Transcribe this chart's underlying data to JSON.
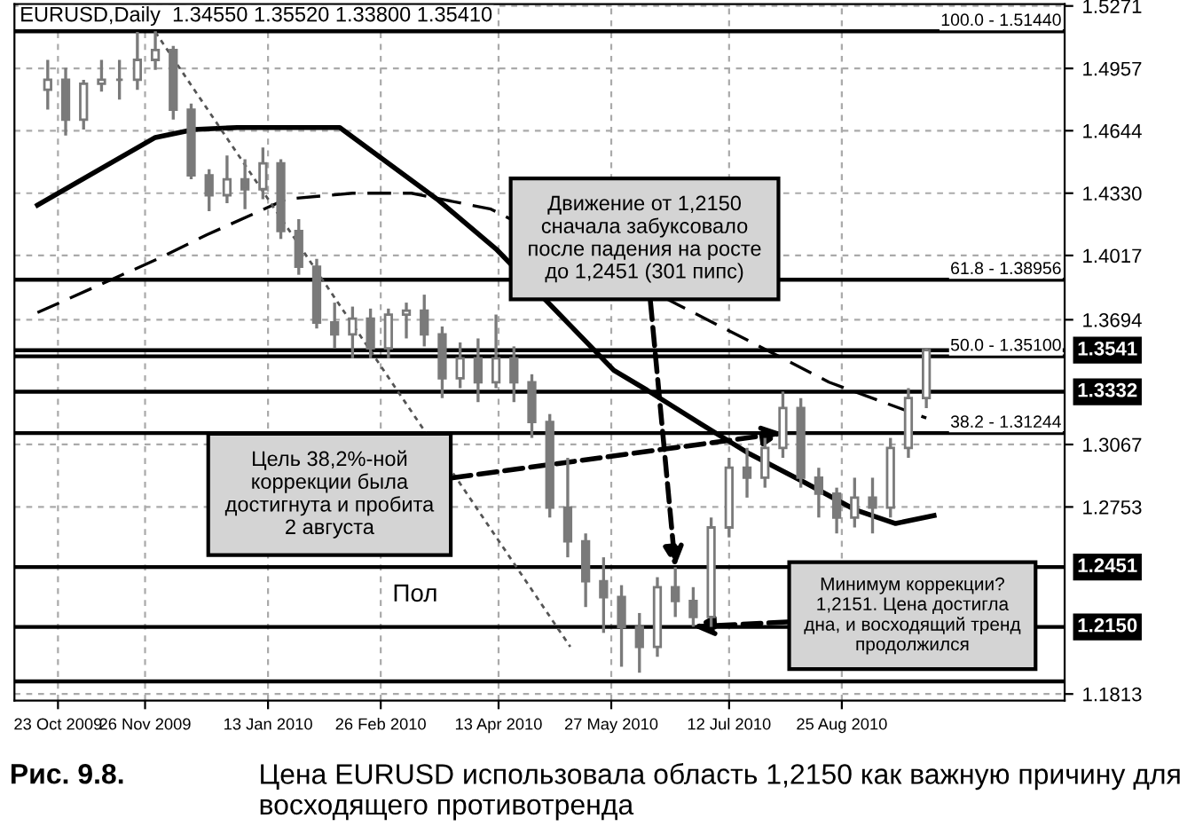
{
  "chart_data": {
    "type": "candlestick",
    "title": "EURUSD,Daily  1.34550 1.35520 1.33800 1.35410",
    "x": [
      "2009-10-19",
      "2009-10-26",
      "2009-11-02",
      "2009-11-09",
      "2009-11-16",
      "2009-11-23",
      "2009-11-30",
      "2009-12-07",
      "2009-12-14",
      "2009-12-21",
      "2009-12-28",
      "2010-01-04",
      "2010-01-11",
      "2010-01-18",
      "2010-01-25",
      "2010-02-01",
      "2010-02-08",
      "2010-02-15",
      "2010-02-22",
      "2010-03-01",
      "2010-03-08",
      "2010-03-15",
      "2010-03-22",
      "2010-03-29",
      "2010-04-05",
      "2010-04-12",
      "2010-04-19",
      "2010-04-26",
      "2010-05-03",
      "2010-05-10",
      "2010-05-17",
      "2010-05-24",
      "2010-05-31",
      "2010-06-07",
      "2010-06-14",
      "2010-06-21",
      "2010-06-28",
      "2010-07-05",
      "2010-07-12",
      "2010-07-19",
      "2010-07-26",
      "2010-08-02",
      "2010-08-09",
      "2010-08-16",
      "2010-08-23",
      "2010-08-30",
      "2010-09-06",
      "2010-09-13",
      "2010-09-20",
      "2010-09-27"
    ],
    "ohlc": [
      [
        1.485,
        1.5,
        1.475,
        1.49
      ],
      [
        1.49,
        1.496,
        1.462,
        1.47
      ],
      [
        1.47,
        1.49,
        1.465,
        1.488
      ],
      [
        1.488,
        1.5,
        1.484,
        1.49
      ],
      [
        1.49,
        1.5,
        1.48,
        1.49
      ],
      [
        1.49,
        1.514,
        1.485,
        1.5
      ],
      [
        1.5,
        1.5144,
        1.495,
        1.505
      ],
      [
        1.505,
        1.507,
        1.47,
        1.475
      ],
      [
        1.475,
        1.478,
        1.44,
        1.442
      ],
      [
        1.442,
        1.445,
        1.424,
        1.432
      ],
      [
        1.432,
        1.452,
        1.428,
        1.44
      ],
      [
        1.44,
        1.45,
        1.425,
        1.435
      ],
      [
        1.435,
        1.456,
        1.43,
        1.448
      ],
      [
        1.448,
        1.45,
        1.41,
        1.414
      ],
      [
        1.414,
        1.42,
        1.392,
        1.396
      ],
      [
        1.396,
        1.4,
        1.365,
        1.368
      ],
      [
        1.368,
        1.378,
        1.355,
        1.362
      ],
      [
        1.362,
        1.376,
        1.35,
        1.37
      ],
      [
        1.37,
        1.375,
        1.35,
        1.355
      ],
      [
        1.355,
        1.375,
        1.35,
        1.372
      ],
      [
        1.372,
        1.378,
        1.36,
        1.374
      ],
      [
        1.374,
        1.382,
        1.356,
        1.362
      ],
      [
        1.362,
        1.366,
        1.33,
        1.34
      ],
      [
        1.34,
        1.358,
        1.335,
        1.35
      ],
      [
        1.35,
        1.36,
        1.328,
        1.338
      ],
      [
        1.338,
        1.372,
        1.335,
        1.35
      ],
      [
        1.35,
        1.356,
        1.328,
        1.338
      ],
      [
        1.338,
        1.342,
        1.31,
        1.318
      ],
      [
        1.318,
        1.322,
        1.27,
        1.275
      ],
      [
        1.275,
        1.3,
        1.25,
        1.258
      ],
      [
        1.258,
        1.262,
        1.225,
        1.238
      ],
      [
        1.238,
        1.25,
        1.212,
        1.23
      ],
      [
        1.23,
        1.236,
        1.195,
        1.215
      ],
      [
        1.215,
        1.222,
        1.192,
        1.205
      ],
      [
        1.205,
        1.24,
        1.2,
        1.235
      ],
      [
        1.235,
        1.245,
        1.22,
        1.228
      ],
      [
        1.228,
        1.235,
        1.2151,
        1.22
      ],
      [
        1.22,
        1.27,
        1.215,
        1.265
      ],
      [
        1.265,
        1.3,
        1.26,
        1.295
      ],
      [
        1.295,
        1.305,
        1.28,
        1.29
      ],
      [
        1.29,
        1.31,
        1.285,
        1.305
      ],
      [
        1.305,
        1.3333,
        1.3,
        1.325
      ],
      [
        1.325,
        1.33,
        1.285,
        1.29
      ],
      [
        1.29,
        1.295,
        1.27,
        1.282
      ],
      [
        1.282,
        1.285,
        1.262,
        1.27
      ],
      [
        1.27,
        1.29,
        1.265,
        1.28
      ],
      [
        1.28,
        1.29,
        1.262,
        1.275
      ],
      [
        1.275,
        1.31,
        1.27,
        1.305
      ],
      [
        1.305,
        1.335,
        1.3,
        1.33
      ],
      [
        1.33,
        1.3552,
        1.325,
        1.3541
      ]
    ],
    "color": "#7a7a7a",
    "series": [
      {
        "type": "line",
        "color": "#000000",
        "line_style": "solid",
        "x": [
          "2009-10-15",
          "2009-11-30",
          "2009-12-15",
          "2010-01-01",
          "2010-02-10",
          "2010-03-20",
          "2010-04-12",
          "2010-05-28",
          "2010-06-10",
          "2010-07-01",
          "2010-07-20",
          "2010-08-10",
          "2010-08-30",
          "2010-09-15",
          "2010-09-30"
        ],
        "values": [
          1.427,
          1.461,
          1.465,
          1.466,
          1.466,
          1.43,
          1.405,
          1.344,
          1.334,
          1.317,
          1.302,
          1.288,
          1.274,
          1.267,
          1.271
        ]
      },
      {
        "type": "line",
        "color": "#000000",
        "line_style": "dashed",
        "x": [
          "2009-10-15",
          "2009-12-01",
          "2009-12-20",
          "2010-01-20",
          "2010-02-15",
          "2010-03-10",
          "2010-04-10",
          "2010-07-30",
          "2010-08-20",
          "2010-09-27"
        ],
        "values": [
          1.373,
          1.4,
          1.412,
          1.43,
          1.433,
          1.433,
          1.425,
          1.352,
          1.338,
          1.32
        ]
      },
      {
        "type": "line",
        "color": "#555555",
        "line_style": "dotted",
        "x": [
          "2009-11-30",
          "2010-05-11"
        ],
        "values": [
          1.514,
          1.205
        ]
      }
    ],
    "xlim": [
      "2009-10-06",
      "2010-11-20"
    ],
    "xticks": [
      {
        "value": "2009-10-23",
        "label": "23 Oct 2009"
      },
      {
        "value": "2009-11-26",
        "label": "26 Nov 2009"
      },
      {
        "value": "2010-01-13",
        "label": "13 Jan 2010"
      },
      {
        "value": "2010-02-26",
        "label": "26 Feb 2010"
      },
      {
        "value": "2010-04-13",
        "label": "13 Apr 2010"
      },
      {
        "value": "2010-05-27",
        "label": "27 May 2010"
      },
      {
        "value": "2010-07-12",
        "label": "12 Jul 2010"
      },
      {
        "value": "2010-08-25",
        "label": "25 Aug 2010"
      }
    ],
    "ylim": [
      1.178,
      1.528
    ],
    "yticks": [
      1.5271,
      1.4957,
      1.4644,
      {
        "value": 1.433,
        "label": "1.4330"
      },
      1.4017,
      1.3694,
      1.3067,
      1.2753,
      1.1813
    ],
    "ref_lines": [
      {
        "axis": "y",
        "value": 1.5144,
        "label": null,
        "color": "#000000"
      },
      {
        "axis": "y",
        "value": 1.38956,
        "label": null,
        "color": "#000000"
      },
      {
        "axis": "y",
        "value": 1.3541,
        "label": "1.3541",
        "color": "#000000"
      },
      {
        "axis": "y",
        "value": 1.351,
        "label": null,
        "color": "#000000"
      },
      {
        "axis": "y",
        "value": 1.3332,
        "label": "1.3332",
        "color": "#000000"
      },
      {
        "axis": "y",
        "value": 1.31244,
        "label": null,
        "color": "#000000"
      },
      {
        "axis": "y",
        "value": 1.2451,
        "label": "1.2451",
        "color": "#000000"
      },
      {
        "axis": "y",
        "value": 1.215,
        "label": "1.2150",
        "color": "#000000"
      },
      {
        "axis": "y",
        "value": 1.1876,
        "label": null,
        "color": "#000000"
      }
    ],
    "annotations": [
      {
        "text": "Движение от 1,2150\nсначала забуксовало\nпосле падения на росте\nдо 1,2451 (301 пипс)",
        "x": "2010-06-21",
        "y": 1.2451
      },
      {
        "text": "Цель 38,2%-ной\nкоррекции была\nдостигнута и пробита\n2 августа",
        "x": "2010-08-02",
        "y": 1.31244
      },
      {
        "text": "Минимум коррекции?\n1,2151. Цена достигла\nдна, и восходящий тренд\nпродолжился",
        "x": "2010-06-28",
        "y": 1.2151
      },
      {
        "text": "100.0 - 1.51440",
        "y": 1.5144
      },
      {
        "text": "61.8 - 1.38956",
        "y": 1.38956
      },
      {
        "text": "50.0 - 1.35100",
        "y": 1.351
      },
      {
        "text": "38.2 - 1.31244",
        "y": 1.31244
      },
      "Пол",
      "Рис. 9.8.",
      "Цена EURUSD использовала область 1,2150 как важную причину для восходящего противотренда"
    ],
    "grid": true
  }
}
